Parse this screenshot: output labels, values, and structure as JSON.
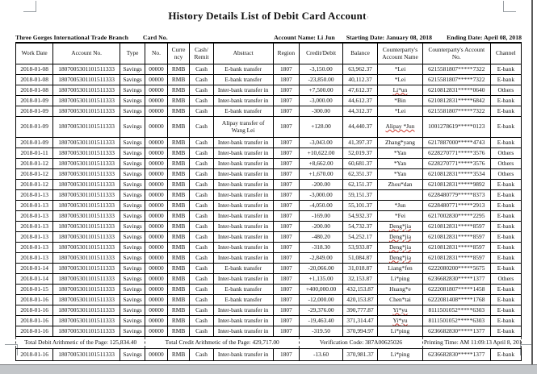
{
  "document": {
    "title": "History Details List of Debit Card Account",
    "title_mark": "¹",
    "meta": {
      "branch": "Three Gorges International Trade Branch",
      "card_no_label": "Card No.",
      "account_name": "Account Name: Li Jun",
      "starting_date": "Starting Date: January 08, 2018",
      "ending_date": "Ending Date: April 08, 2018"
    },
    "table": {
      "headers": [
        "Work Date",
        "Account No.",
        "Type",
        "No.",
        "Curre\nncy",
        "Cash/\nRemit",
        "Abstract",
        "Region",
        "Credit/Debit",
        "Balance",
        "Counterparty's\nAccount Name",
        "Counterparty's Account\nNo.",
        "Channel"
      ],
      "rows": [
        [
          "2018-01-08",
          "1807005301101511333",
          "Savings",
          "00000",
          "RMB",
          "Cash",
          "E-bank transfer",
          "1807",
          "-3,150.00",
          "63,962.37",
          "*Lei",
          "6215581807*****7322",
          "E-bank"
        ],
        [
          "2018-01-08",
          "1807005301101511333",
          "Savings",
          "00000",
          "RMB",
          "Cash",
          "E-bank transfer",
          "1807",
          "-23,850.00",
          "40,112.37",
          "*Lei",
          "6215581807*****7322",
          "E-bank"
        ],
        [
          "2018-01-08",
          "1807005301101511333",
          "Savings",
          "00000",
          "RMB",
          "Cash",
          "Inter-bank transfer in",
          "1807",
          "+7,500.00",
          "47,612.37",
          "Li*un",
          "6210812831*****0640",
          "Others"
        ],
        [
          "2018-01-09",
          "1807005301101511333",
          "Savings",
          "00000",
          "RMB",
          "Cash",
          "Inter-bank transfer in",
          "1807",
          "-3,000.00",
          "44,612.37",
          "*Bin",
          "6210812831*****6842",
          "E-bank"
        ],
        [
          "2018-01-09",
          "1807005301101511333",
          "Savings",
          "00000",
          "RMB",
          "Cash",
          "E-bank transfer",
          "1807",
          "-300.00",
          "44,312.37",
          "*Lei",
          "6215581807*****7322",
          "E-bank"
        ],
        [
          "2018-01-09",
          "1807005301101511333",
          "Savings",
          "00000",
          "RMB",
          "Cash",
          "Alipay transfer of\nWang Lei",
          "1807",
          "+128.00",
          "44,440.37",
          "Alipay *Jun",
          "1001278619*****0123",
          "E-bank"
        ],
        [
          "2018-01-09",
          "1807005301101511333",
          "Savings",
          "00000",
          "RMB",
          "Cash",
          "Inter-bank transfer in",
          "1807",
          "-3,043.00",
          "41,397.37",
          "Zhang*yang",
          "6217887000*****4743",
          "E-bank"
        ],
        [
          "2018-01-11",
          "1807005301101511333",
          "Savings",
          "00000",
          "RMB",
          "Cash",
          "Inter-bank transfer in",
          "1807",
          "+10,622.00",
          "52,019.37",
          "*Yan",
          "6228270771*****3576",
          "Others"
        ],
        [
          "2018-01-12",
          "1807005301101511333",
          "Savings",
          "00000",
          "RMB",
          "Cash",
          "Inter-bank transfer in",
          "1807",
          "+8,662.00",
          "60,681.37",
          "*Yan",
          "6228270771*****3576",
          "Others"
        ],
        [
          "2018-01-12",
          "1807005301101511333",
          "Savings",
          "00000",
          "RMB",
          "Cash",
          "Inter-bank transfer in",
          "1807",
          "+1,670.00",
          "62,351.37",
          "*Yan",
          "6210812831*****3534",
          "Others"
        ],
        [
          "2018-01-12",
          "1807005301101511333",
          "Savings",
          "00000",
          "RMB",
          "Cash",
          "Inter-bank transfer in",
          "1807",
          "-200.00",
          "62,151.37",
          "Zhou*dan",
          "6210812831*****9892",
          "E-bank"
        ],
        [
          "2018-01-13",
          "1807005301101511333",
          "Savings",
          "00000",
          "RMB",
          "Cash",
          "Inter-bank transfer in",
          "1807",
          "-3,000.00",
          "59,151.37",
          "",
          "6228480779*****8373",
          "E-bank"
        ],
        [
          "2018-01-13",
          "1807005301101511333",
          "Savings",
          "00000",
          "RMB",
          "Cash",
          "Inter-bank transfer in",
          "1807",
          "-4,050.00",
          "55,101.37",
          "*Jun",
          "6228480771*****2913",
          "E-bank"
        ],
        [
          "2018-01-13",
          "1807005301101511333",
          "Savings",
          "00000",
          "RMB",
          "Cash",
          "Inter-bank transfer in",
          "1807",
          "-169.00",
          "54,932.37",
          "*Fei",
          "6217002830*****2295",
          "E-bank"
        ],
        [
          "2018-01-13",
          "1807005301101511333",
          "Savings",
          "00000",
          "RMB",
          "Cash",
          "Inter-bank transfer in",
          "1807",
          "-200.00",
          "54,732.37",
          "Deng*jia",
          "6210812831*****8597",
          "E-bank"
        ],
        [
          "2018-01-13",
          "1807005301101511333",
          "Savings",
          "00000",
          "RMB",
          "Cash",
          "Inter-bank transfer in",
          "1807",
          "-480.20",
          "54,252.17",
          "Deng*jia",
          "6210812831*****8597",
          "E-bank"
        ],
        [
          "2018-01-13",
          "1807005301101511333",
          "Savings",
          "00000",
          "RMB",
          "Cash",
          "Inter-bank transfer in",
          "1807",
          "-318.30",
          "53,933.87",
          "Deng*jia",
          "6210812831*****8597",
          "E-bank"
        ],
        [
          "2018-01-13",
          "1807005301101511333",
          "Savings",
          "00000",
          "RMB",
          "Cash",
          "Inter-bank transfer in",
          "1807",
          "-2,849.00",
          "51,084.87",
          "Deng*jia",
          "6210812831*****8597",
          "E-bank"
        ],
        [
          "2018-01-14",
          "1807005301101511333",
          "Savings",
          "00000",
          "RMB",
          "Cash",
          "E-bank transfer",
          "1807",
          "-20,066.00",
          "31,018.87",
          "Liang*fen",
          "6222080200*****5675",
          "E-bank"
        ],
        [
          "2018-01-14",
          "1807005301101511333",
          "Savings",
          "00000",
          "RMB",
          "Cash",
          "Inter-bank transfer in",
          "1807",
          "+1,135.00",
          "32,153.87",
          "Li*ping",
          "6236682830*****1377",
          "Others"
        ],
        [
          "2018-01-15",
          "1807005301101511333",
          "Savings",
          "00000",
          "RMB",
          "Cash",
          "E-bank transfer",
          "1807",
          "+400,000.00",
          "432,153.87",
          "Huang*e",
          "6222081807*****1458",
          "E-bank"
        ],
        [
          "2018-01-16",
          "1807005301101511333",
          "Savings",
          "00000",
          "RMB",
          "Cash",
          "E-bank transfer",
          "1807",
          "-12,000.00",
          "420,153.87",
          "Chen*tai",
          "6222081408*****1768",
          "E-bank"
        ],
        [
          "2018-01-16",
          "1807005301101511333",
          "Savings",
          "00000",
          "RMB",
          "Cash",
          "Inter-bank transfer in",
          "1807",
          "-29,376.00",
          "390,777.87",
          "Yi*yu",
          "8111501052*****6303",
          "E-bank"
        ],
        [
          "2018-01-16",
          "1807005301101511333",
          "Savings",
          "00000",
          "RMB",
          "Cash",
          "Inter-bank transfer in",
          "1807",
          "-19,463.40",
          "371,314.47",
          "Yi*yu",
          "8111501052*****6303",
          "E-bank"
        ],
        [
          "2018-01-16",
          "1807005301101511333",
          "Savings",
          "00000",
          "RMB",
          "Cash",
          "Inter-bank transfer in",
          "1807",
          "-319.50",
          "370,994.97",
          "Li*ping",
          "6236682830*****1377",
          "E-bank"
        ]
      ],
      "summary": {
        "total_debit": "Total Debit Arithmetic of the Page: 125,834.40",
        "total_credit": "Total Credit Arithmetic of the Page: 429,717.00",
        "verification_code": "Verification Code: 387A00625026",
        "printing_time": "Printing Time: AM 11:09:13 April 8, 2018"
      },
      "rows_after_summary": [
        [
          "2018-01-16",
          "1807005301101511333",
          "Savings",
          "00000",
          "RMB",
          "Cash",
          "Inter-bank transfer in",
          "1807",
          "-13.60",
          "370,981.37",
          "Li*ping",
          "6236682830*****1377",
          "E-bank"
        ]
      ],
      "misspelled_names": [
        "Li*un",
        "Alipay *Jun",
        "Deng*jia",
        "Yi*yu"
      ]
    },
    "colors": {
      "page_background": "#ffffff",
      "table_border": "#000000",
      "spellcheck_red": "#cf3b30",
      "window_edge": "#c3c6c9",
      "crop_marks": "#979da2"
    }
  }
}
